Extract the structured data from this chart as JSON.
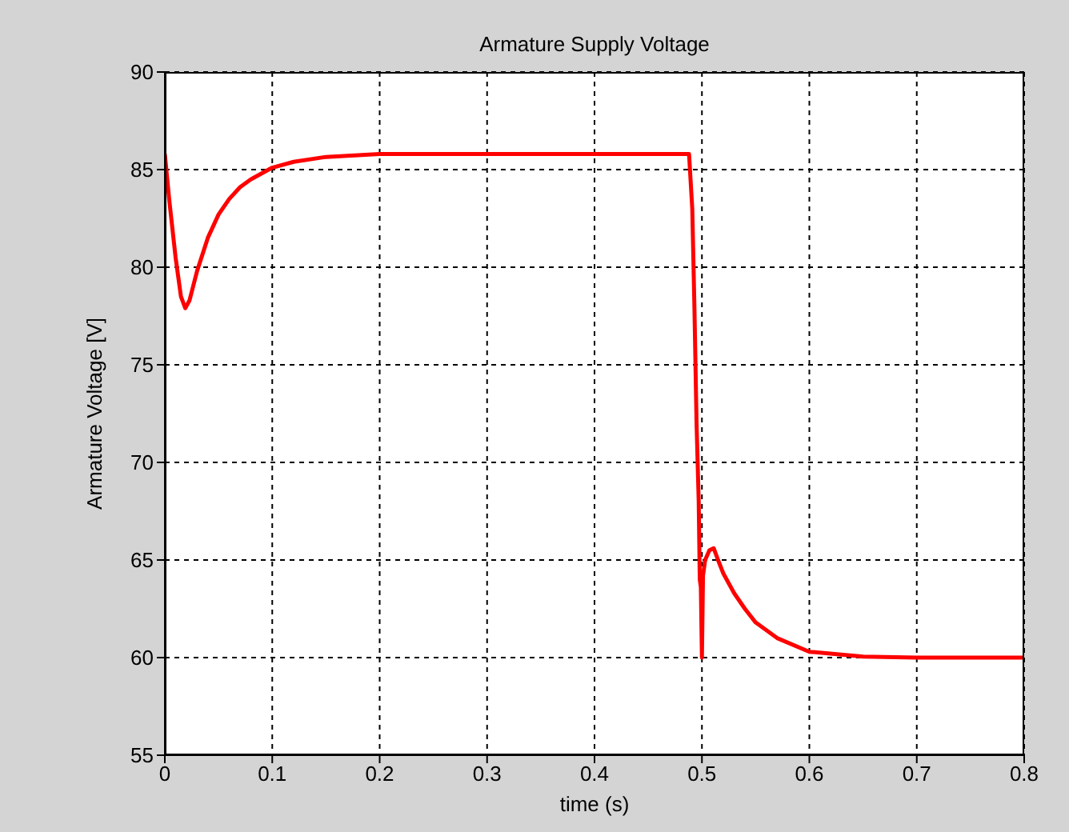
{
  "chart_data": {
    "type": "line",
    "title": "Armature Supply Voltage",
    "xlabel": "time (s)",
    "ylabel": "Armature Voltage [V]",
    "x": [
      0,
      0.004,
      0.01,
      0.015,
      0.019,
      0.023,
      0.03,
      0.04,
      0.05,
      0.06,
      0.07,
      0.08,
      0.1,
      0.12,
      0.15,
      0.2,
      0.3,
      0.4,
      0.488,
      0.491,
      0.493,
      0.495,
      0.497,
      0.498,
      0.499,
      0.5,
      0.501,
      0.503,
      0.507,
      0.511,
      0.515,
      0.52,
      0.53,
      0.54,
      0.55,
      0.57,
      0.6,
      0.65,
      0.7,
      0.8
    ],
    "series": [
      {
        "color": "#ff0000",
        "values": [
          85.8,
          83.5,
          80.5,
          78.5,
          77.9,
          78.3,
          79.8,
          81.5,
          82.7,
          83.5,
          84.1,
          84.5,
          85.1,
          85.4,
          85.65,
          85.8,
          85.8,
          85.8,
          85.8,
          83,
          78,
          72,
          68,
          64,
          63.6,
          60,
          64.2,
          65,
          65.5,
          65.6,
          65,
          64.3,
          63.3,
          62.5,
          61.8,
          61,
          60.3,
          60.05,
          60,
          60
        ]
      }
    ],
    "xlim": [
      0,
      0.8
    ],
    "xticks": [
      0,
      0.1,
      0.2,
      0.3,
      0.4,
      0.5,
      0.6,
      0.7,
      0.8
    ],
    "ylim": [
      55,
      90
    ],
    "yticks": [
      55,
      60,
      65,
      70,
      75,
      80,
      85,
      90
    ],
    "grid": true,
    "line_style": "solid",
    "marker": "none"
  }
}
